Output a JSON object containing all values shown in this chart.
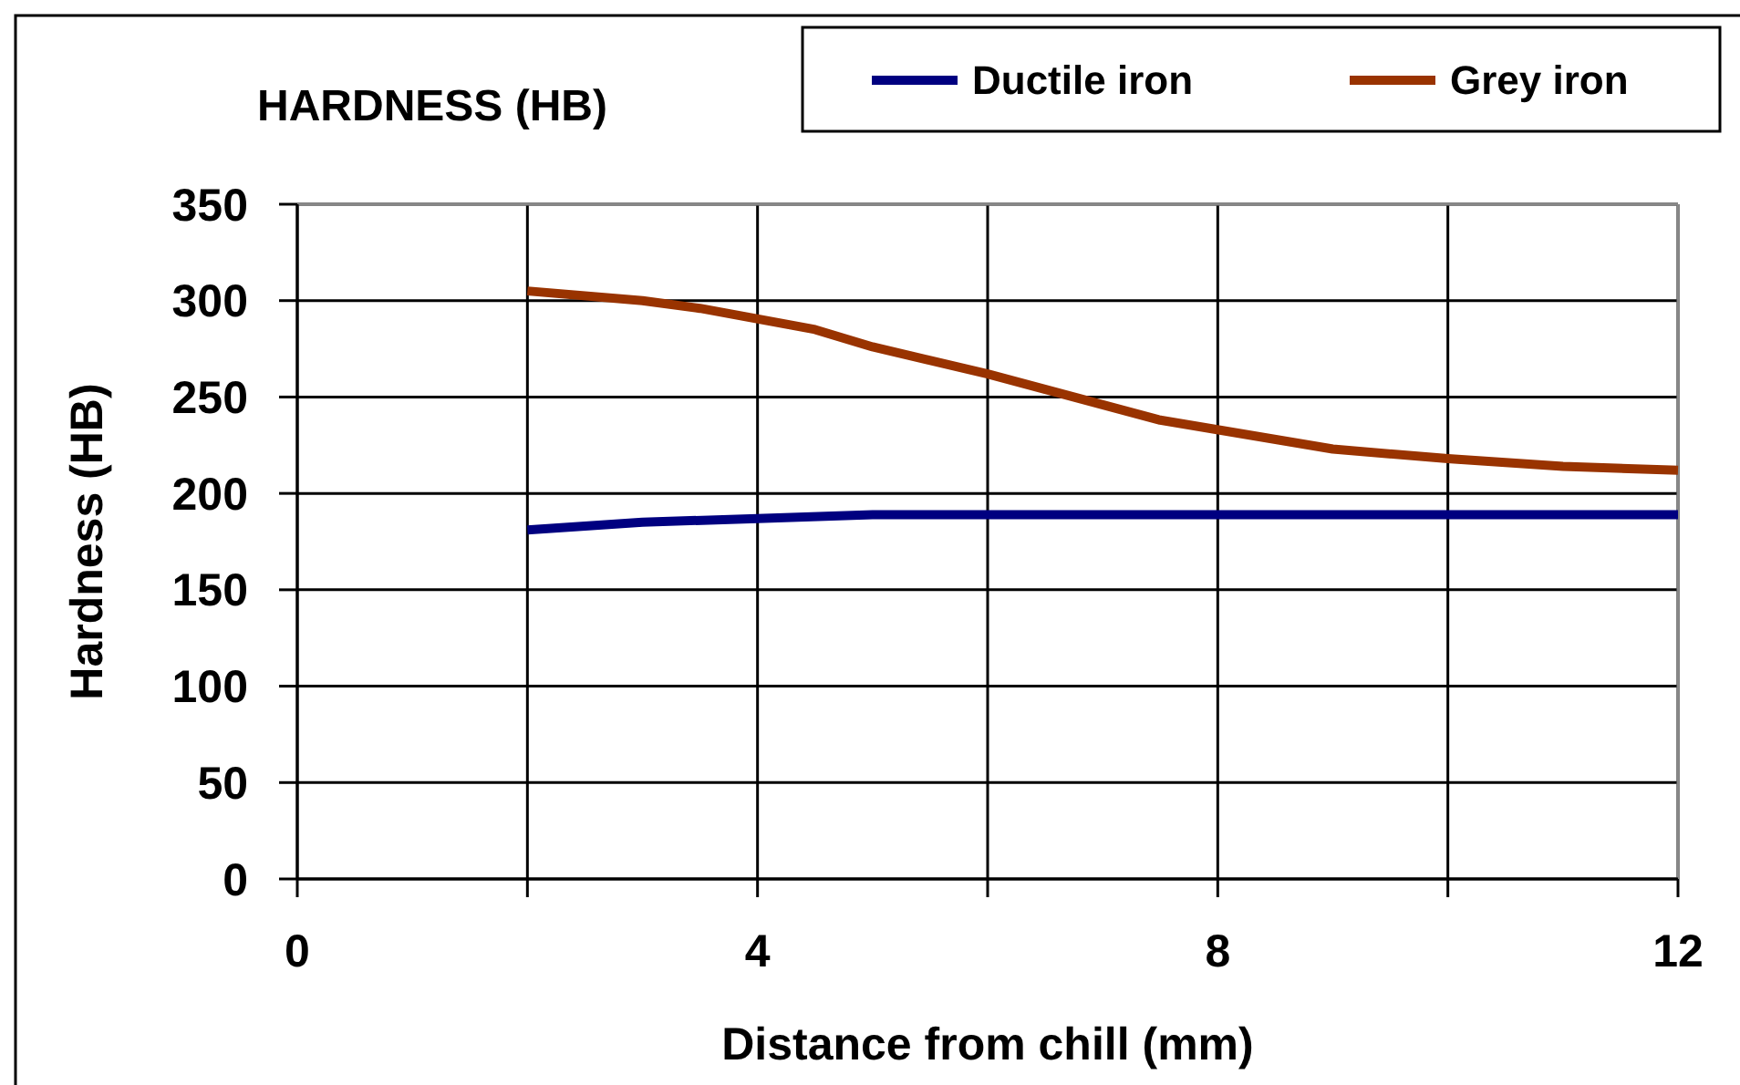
{
  "chart_data": {
    "type": "line",
    "title": "HARDNESS (HB)",
    "xlabel": "Distance from chill (mm)",
    "ylabel": "Hardness (HB)",
    "xlim": [
      0,
      12
    ],
    "xticks": [
      0,
      {
        "value": 2,
        "label": null
      },
      4,
      {
        "value": 6,
        "label": null
      },
      8,
      {
        "value": 10,
        "label": null
      },
      12
    ],
    "ylim": [
      0,
      350
    ],
    "yticks": [
      0,
      50,
      100,
      150,
      200,
      250,
      300,
      350
    ],
    "grid": true,
    "legend": "top right",
    "marker": "none",
    "line_style": "solid",
    "series": [
      {
        "name": "Ductile iron",
        "color": "#000080",
        "x": [
          2,
          3,
          4,
          5,
          6,
          7,
          8,
          9,
          10,
          11,
          12
        ],
        "values": [
          181,
          185,
          187,
          189,
          189,
          189,
          189,
          189,
          189,
          189,
          189
        ]
      },
      {
        "name": "Grey iron",
        "color": "#993300",
        "x": [
          2,
          3,
          3.5,
          4.5,
          5,
          6,
          7.5,
          9,
          10,
          11,
          12
        ],
        "values": [
          305,
          300,
          296,
          285,
          276,
          262,
          238,
          223,
          218,
          214,
          212
        ]
      }
    ]
  }
}
